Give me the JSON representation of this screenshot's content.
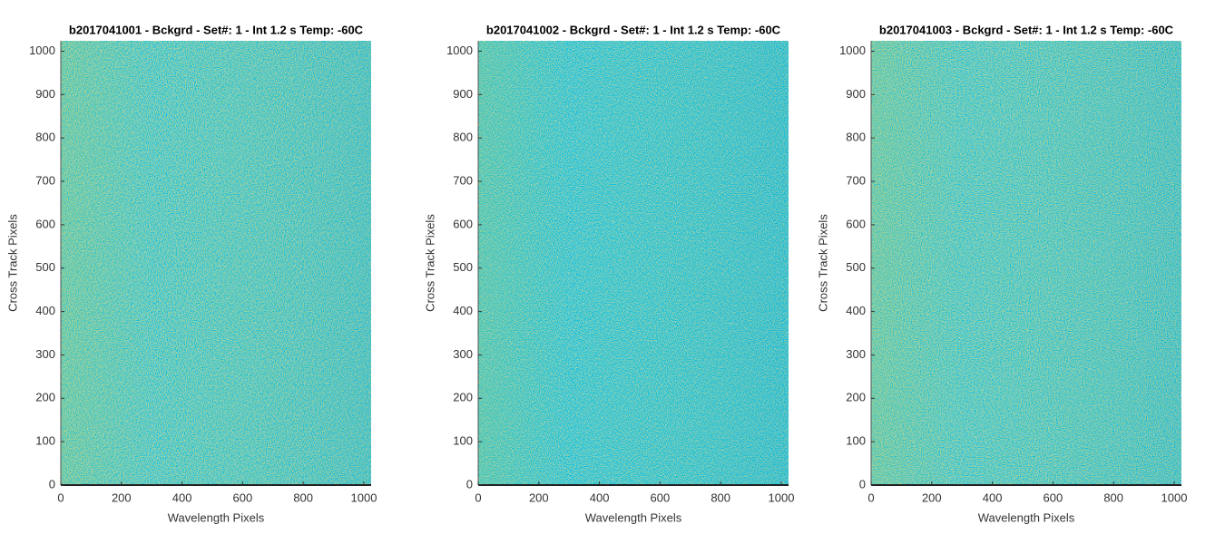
{
  "chart_data": [
    {
      "type": "heatmap",
      "title": "b2017041001 - Bckgrd - Set#: 1 - Int 1.2 s Temp: -60C",
      "xlabel": "Wavelength Pixels",
      "ylabel": "Cross Track Pixels",
      "xlim": [
        0,
        1024
      ],
      "ylim": [
        0,
        1024
      ],
      "xticks": [
        0,
        200,
        400,
        600,
        800,
        1000
      ],
      "yticks": [
        0,
        100,
        200,
        300,
        400,
        500,
        600,
        700,
        800,
        900,
        1000
      ]
    },
    {
      "type": "heatmap",
      "title": "b2017041002 - Bckgrd - Set#: 1 - Int 1.2 s Temp: -60C",
      "xlabel": "Wavelength Pixels",
      "ylabel": "Cross Track Pixels",
      "xlim": [
        0,
        1024
      ],
      "ylim": [
        0,
        1024
      ],
      "xticks": [
        0,
        200,
        400,
        600,
        800,
        1000
      ],
      "yticks": [
        0,
        100,
        200,
        300,
        400,
        500,
        600,
        700,
        800,
        900,
        1000
      ]
    },
    {
      "type": "heatmap",
      "title": "b2017041003 - Bckgrd - Set#: 1 - Int 1.2 s Temp: -60C",
      "xlabel": "Wavelength Pixels",
      "ylabel": "Cross Track Pixels",
      "xlim": [
        0,
        1024
      ],
      "ylim": [
        0,
        1024
      ],
      "xticks": [
        0,
        200,
        400,
        600,
        800,
        1000
      ],
      "yticks": [
        0,
        100,
        200,
        300,
        400,
        500,
        600,
        700,
        800,
        900,
        1000
      ]
    }
  ]
}
